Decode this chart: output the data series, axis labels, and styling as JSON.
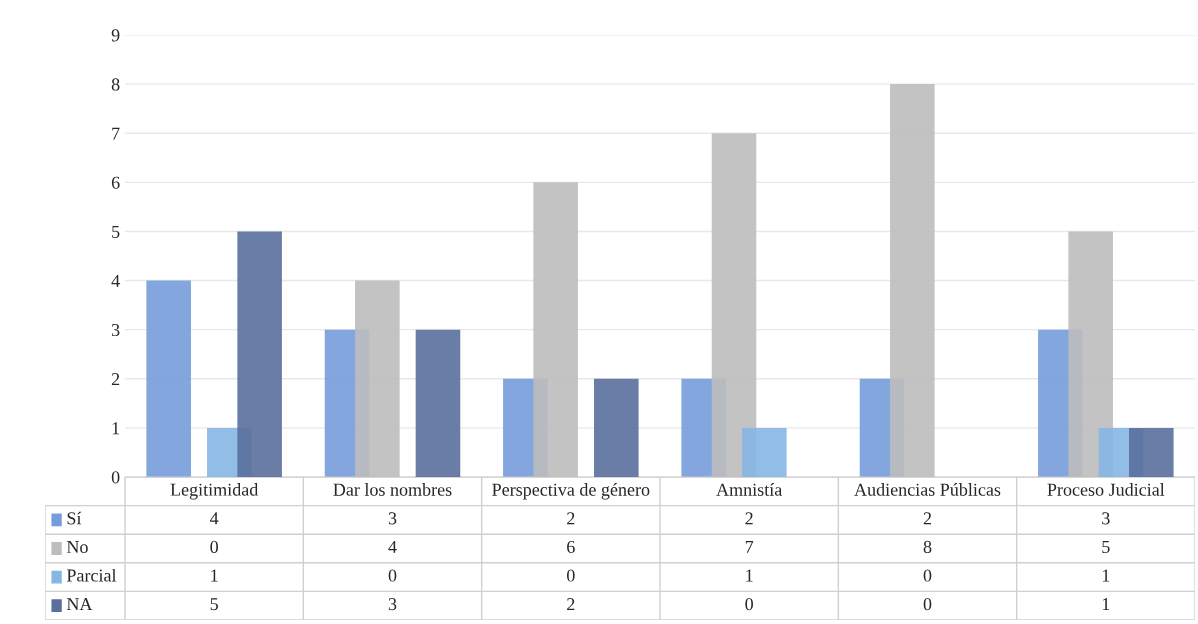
{
  "chart_data": {
    "type": "bar",
    "categories": [
      "Legitimidad",
      "Dar los nombres",
      "Perspectiva de género",
      "Amnistía",
      "Audiencias Públicas",
      "Proceso Judicial"
    ],
    "series": [
      {
        "name": "Sí",
        "color": "#779cdb",
        "values": [
          4,
          3,
          2,
          2,
          2,
          3
        ]
      },
      {
        "name": "No",
        "color": "#bdbdbd",
        "values": [
          0,
          4,
          6,
          7,
          8,
          5
        ]
      },
      {
        "name": "Parcial",
        "color": "#86b6e3",
        "values": [
          1,
          0,
          0,
          1,
          0,
          1
        ]
      },
      {
        "name": "NA",
        "color": "#5a6f9c",
        "values": [
          5,
          3,
          2,
          0,
          0,
          1
        ]
      }
    ],
    "ylim": [
      0,
      9
    ],
    "yticks": [
      0,
      1,
      2,
      3,
      4,
      5,
      6,
      7,
      8,
      9
    ],
    "grid": "y",
    "data_labels": true,
    "legend": "bottom"
  }
}
